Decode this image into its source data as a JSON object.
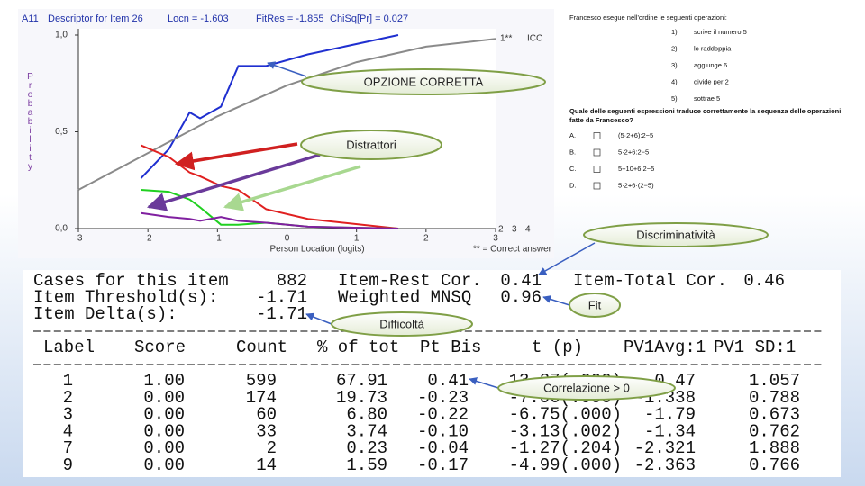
{
  "chart_data": {
    "type": "line",
    "header": [
      "A11",
      "Descriptor for Item 26",
      "Locn = -1.603",
      "FitRes = -1.855",
      "ChiSq[Pr] = 0.027"
    ],
    "ylabel": "Probability",
    "xlabel": "Person Location (logits)",
    "note": "** = Correct answer",
    "xlim": [
      -3,
      3
    ],
    "ylim": [
      0,
      1
    ],
    "xticks": [
      -3,
      -2,
      -1,
      0,
      1,
      2,
      3
    ],
    "yticks": [
      {
        "value": 0,
        "label": "0,0"
      },
      {
        "value": 0.5,
        "label": "0,5"
      },
      {
        "value": 1,
        "label": "1,0"
      }
    ],
    "series": [
      {
        "name": "1**",
        "color": "#1f2fd0",
        "x": [
          -2.1,
          -1.7,
          -1.4,
          -1.25,
          -0.95,
          -0.7,
          -0.3,
          0.3,
          1.6
        ],
        "values": [
          0.26,
          0.41,
          0.6,
          0.57,
          0.63,
          0.84,
          0.84,
          0.9,
          1.0
        ]
      },
      {
        "name": "ICC",
        "color": "#8a8a8a",
        "x": [
          -3,
          -2,
          -1,
          0,
          1,
          2,
          3
        ],
        "values": [
          0.2,
          0.39,
          0.58,
          0.74,
          0.86,
          0.94,
          0.98
        ]
      },
      {
        "name": "2",
        "color": "#e02020",
        "x": [
          -2.1,
          -1.7,
          -1.4,
          -1.25,
          -0.95,
          -0.7,
          -0.3,
          0.3,
          1.6
        ],
        "values": [
          0.43,
          0.37,
          0.29,
          0.27,
          0.22,
          0.2,
          0.1,
          0.05,
          0.0
        ]
      },
      {
        "name": "3",
        "color": "#20d020",
        "x": [
          -2.1,
          -1.7,
          -1.4,
          -1.25,
          -0.95,
          -0.7,
          -0.3,
          0.3,
          1.6
        ],
        "values": [
          0.2,
          0.19,
          0.15,
          0.11,
          0.02,
          0.02,
          0.03,
          0.01,
          0.0
        ]
      },
      {
        "name": "4",
        "color": "#8020a0",
        "x": [
          -2.1,
          -1.7,
          -1.4,
          -1.25,
          -0.95,
          -0.7,
          -0.3,
          0.3,
          1.6
        ],
        "values": [
          0.08,
          0.06,
          0.05,
          0.04,
          0.06,
          0.04,
          0.03,
          0.01,
          0.0
        ]
      }
    ]
  },
  "question": {
    "intro": "Francesco esegue nell'ordine le seguenti operazioni:",
    "steps": [
      [
        "1)",
        "scrive il numero 5"
      ],
      [
        "2)",
        "lo raddoppia"
      ],
      [
        "3)",
        "aggiunge 6"
      ],
      [
        "4)",
        "divide per 2"
      ],
      [
        "5)",
        "sottrae 5"
      ]
    ],
    "prompt": [
      "Quale delle seguenti espressioni traduce correttamente la sequenza delle operazioni",
      "fatte da Francesco?"
    ],
    "options": [
      [
        "A.",
        "(5·2+6):2−5"
      ],
      [
        "B.",
        "5·2+6:2−5"
      ],
      [
        "C.",
        "5+10+6:2−5"
      ],
      [
        "D.",
        "5·2+6·(2−5)"
      ]
    ]
  },
  "summary": [
    [
      "Cases for this item",
      "882",
      "Item-Rest Cor.",
      "0.41",
      "Item-Total Cor.",
      "0.46"
    ],
    [
      "Item Threshold(s):",
      "-1.71",
      "Weighted MNSQ",
      "0.96"
    ],
    [
      "Item Delta(s):",
      "-1.71"
    ]
  ],
  "table": {
    "header": [
      "Label",
      "Score",
      "Count",
      "% of tot",
      "Pt Bis",
      "t (p)",
      "PV1Avg:1",
      "PV1 SD:1"
    ],
    "rows": [
      [
        "1",
        "1.00",
        "599",
        "67.91",
        "0.41",
        "13.27(.000)",
        "0.47",
        "1.057"
      ],
      [
        "2",
        "0.00",
        "174",
        "19.73",
        "-0.23",
        "-7.06(.000)",
        "-1.338",
        "0.788"
      ],
      [
        "3",
        "0.00",
        "60",
        "6.80",
        "-0.22",
        "-6.75(.000)",
        "-1.79",
        "0.673"
      ],
      [
        "4",
        "0.00",
        "33",
        "3.74",
        "-0.10",
        "-3.13(.002)",
        "-1.34",
        "0.762"
      ],
      [
        "7",
        "0.00",
        "2",
        "0.23",
        "-0.04",
        "-1.27(.204)",
        "-2.321",
        "1.888"
      ],
      [
        "9",
        "0.00",
        "14",
        "1.59",
        "-0.17",
        "-4.99(.000)",
        "-2.363",
        "0.766"
      ]
    ]
  },
  "callouts": [
    "OPZIONE CORRETTA",
    "Distrattori",
    "Discriminatività",
    "Fit",
    "Difficoltà",
    "Correlazione > 0"
  ]
}
